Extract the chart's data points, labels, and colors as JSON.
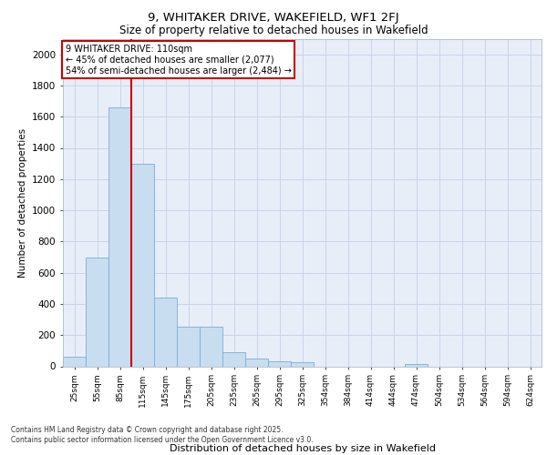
{
  "title1": "9, WHITAKER DRIVE, WAKEFIELD, WF1 2FJ",
  "title2": "Size of property relative to detached houses in Wakefield",
  "xlabel": "Distribution of detached houses by size in Wakefield",
  "ylabel": "Number of detached properties",
  "categories": [
    "25sqm",
    "55sqm",
    "85sqm",
    "115sqm",
    "145sqm",
    "175sqm",
    "205sqm",
    "235sqm",
    "265sqm",
    "295sqm",
    "325sqm",
    "354sqm",
    "384sqm",
    "414sqm",
    "444sqm",
    "474sqm",
    "504sqm",
    "534sqm",
    "564sqm",
    "594sqm",
    "624sqm"
  ],
  "values": [
    60,
    700,
    1660,
    1300,
    440,
    255,
    255,
    90,
    50,
    30,
    25,
    0,
    0,
    0,
    0,
    15,
    0,
    0,
    0,
    0,
    0
  ],
  "bar_color": "#c9ddf0",
  "bar_edge_color": "#7aaed6",
  "red_line_color": "#cc0000",
  "annotation_text": "9 WHITAKER DRIVE: 110sqm\n← 45% of detached houses are smaller (2,077)\n54% of semi-detached houses are larger (2,484) →",
  "annotation_box_color": "#ffffff",
  "annotation_box_edge": "#cc0000",
  "grid_color": "#c8d4e8",
  "background_color": "#e8eef8",
  "ylim": [
    0,
    2100
  ],
  "yticks": [
    0,
    200,
    400,
    600,
    800,
    1000,
    1200,
    1400,
    1600,
    1800,
    2000
  ],
  "footnote": "Contains HM Land Registry data © Crown copyright and database right 2025.\nContains public sector information licensed under the Open Government Licence v3.0."
}
